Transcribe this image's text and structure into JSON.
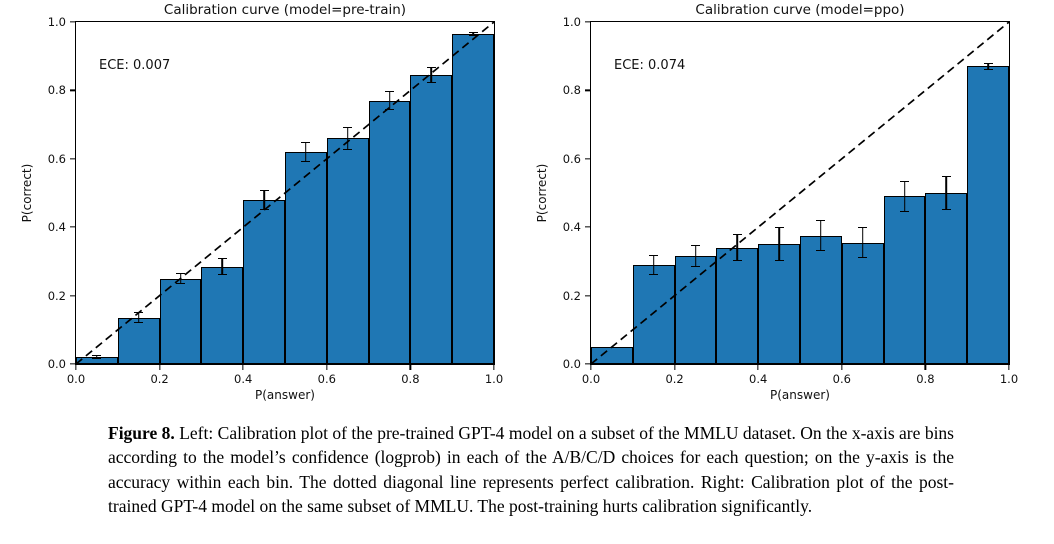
{
  "figure": {
    "caption_label": "Figure 8.",
    "caption_text": "Left: Calibration plot of the pre-trained GPT-4 model on a subset of the MMLU dataset. On the x-axis are bins according to the model’s confidence (logprob) in each of the A/B/C/D choices for each question; on the y-axis is the accuracy within each bin. The dotted diagonal line represents perfect calibration. Right: Calibration plot of the post-trained GPT-4 model on the same subset of MMLU. The post-training hurts calibration significantly."
  },
  "chart_data": [
    {
      "type": "bar",
      "title": "Calibration curve (model=pre-train)",
      "annotation": "ECE: 0.007",
      "xlabel": "P(answer)",
      "ylabel": "P(correct)",
      "xlim": [
        0.0,
        1.0
      ],
      "ylim": [
        0.0,
        1.0
      ],
      "xticks": [
        "0.0",
        "0.2",
        "0.4",
        "0.6",
        "0.8",
        "1.0"
      ],
      "yticks": [
        "0.0",
        "0.2",
        "0.4",
        "0.6",
        "0.8",
        "1.0"
      ],
      "bin_edges": [
        0.0,
        0.1,
        0.2,
        0.3,
        0.4,
        0.5,
        0.6,
        0.7,
        0.8,
        0.9,
        1.0
      ],
      "values": [
        0.02,
        0.135,
        0.25,
        0.285,
        0.48,
        0.62,
        0.66,
        0.77,
        0.845,
        0.965
      ],
      "errors": [
        0.005,
        0.016,
        0.017,
        0.024,
        0.03,
        0.03,
        0.034,
        0.028,
        0.022,
        0.005
      ],
      "diagonal_reference_line": true,
      "grid": false,
      "bar_color": "#1f77b4",
      "edge_color": "#000000"
    },
    {
      "type": "bar",
      "title": "Calibration curve (model=ppo)",
      "annotation": "ECE: 0.074",
      "xlabel": "P(answer)",
      "ylabel": "P(correct)",
      "xlim": [
        0.0,
        1.0
      ],
      "ylim": [
        0.0,
        1.0
      ],
      "xticks": [
        "0.0",
        "0.2",
        "0.4",
        "0.6",
        "0.8",
        "1.0"
      ],
      "yticks": [
        "0.0",
        "0.2",
        "0.4",
        "0.6",
        "0.8",
        "1.0"
      ],
      "bin_edges": [
        0.0,
        0.1,
        0.2,
        0.3,
        0.4,
        0.5,
        0.6,
        0.7,
        0.8,
        0.9,
        1.0
      ],
      "values": [
        0.05,
        0.29,
        0.315,
        0.34,
        0.35,
        0.375,
        0.355,
        0.49,
        0.5,
        0.87
      ],
      "errors": [
        0,
        0.03,
        0.032,
        0.04,
        0.05,
        0.045,
        0.045,
        0.045,
        0.05,
        0.009
      ],
      "diagonal_reference_line": true,
      "grid": false,
      "bar_color": "#1f77b4",
      "edge_color": "#000000"
    }
  ]
}
